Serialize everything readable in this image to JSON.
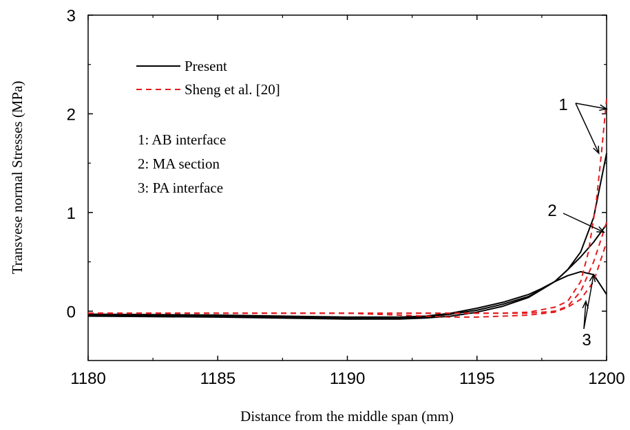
{
  "chart_data": {
    "type": "line",
    "xlabel": "Distance from the middle span (mm)",
    "ylabel": "Transvese normal Stresses (MPa)",
    "xlim": [
      1180,
      1200
    ],
    "ylim": [
      -0.5,
      3
    ],
    "x_ticks": [
      "1180",
      "1185",
      "1190",
      "1195",
      "1200"
    ],
    "y_ticks": [
      "0",
      "1",
      "2",
      "3"
    ],
    "x_tick_values": [
      1180,
      1185,
      1190,
      1195,
      1200
    ],
    "y_tick_values": [
      0,
      1,
      2,
      3
    ],
    "legend": {
      "placement": "top-left",
      "entries": [
        {
          "label": "Present",
          "style": "solid",
          "color": "#000000"
        },
        {
          "label": "Sheng et al. [20]",
          "style": "dashed",
          "color": "#e41a1c"
        }
      ]
    },
    "notes": [
      "1: AB interface",
      "2: MA section",
      "3: PA interface"
    ],
    "annotations": [
      {
        "label": "1",
        "targets": [
          [
            1200,
            2.05
          ],
          [
            1199.7,
            1.6
          ]
        ]
      },
      {
        "label": "2",
        "targets": [
          [
            1199.9,
            0.8
          ]
        ]
      },
      {
        "label": "3",
        "targets": [
          [
            1199.2,
            0.1
          ],
          [
            1199.5,
            0.37
          ]
        ]
      }
    ],
    "series": [
      {
        "group": "Present",
        "x": [
          1180,
          1185,
          1190,
          1192,
          1193,
          1194,
          1195,
          1196,
          1197,
          1198,
          1198.5,
          1199,
          1199.5,
          1200
        ],
        "values": [
          -0.05,
          -0.06,
          -0.08,
          -0.08,
          -0.07,
          -0.05,
          -0.01,
          0.05,
          0.14,
          0.3,
          0.42,
          0.6,
          0.95,
          1.6
        ]
      },
      {
        "group": "Present",
        "x": [
          1180,
          1185,
          1190,
          1192,
          1193,
          1194,
          1195,
          1196,
          1197,
          1197.5,
          1198,
          1198.5,
          1199,
          1199.5,
          1200
        ],
        "values": [
          -0.04,
          -0.05,
          -0.07,
          -0.07,
          -0.06,
          -0.03,
          0.01,
          0.07,
          0.15,
          0.22,
          0.3,
          0.42,
          0.55,
          0.7,
          0.88
        ]
      },
      {
        "group": "Present",
        "x": [
          1180,
          1185,
          1190,
          1192,
          1193,
          1194,
          1195,
          1196,
          1197,
          1197.5,
          1198,
          1198.5,
          1199,
          1199.5,
          1200
        ],
        "values": [
          -0.03,
          -0.04,
          -0.06,
          -0.06,
          -0.05,
          -0.02,
          0.03,
          0.09,
          0.17,
          0.23,
          0.3,
          0.36,
          0.4,
          0.37,
          0.17
        ]
      },
      {
        "group": "Sheng et al. [20]",
        "x": [
          1180,
          1185,
          1190,
          1194,
          1196,
          1197,
          1198,
          1198.5,
          1199,
          1199.3,
          1199.6,
          1199.8,
          1200
        ],
        "values": [
          -0.02,
          -0.02,
          -0.02,
          -0.02,
          -0.02,
          -0.01,
          0.04,
          0.1,
          0.3,
          0.6,
          1.1,
          1.6,
          2.15
        ]
      },
      {
        "group": "Sheng et al. [20]",
        "x": [
          1180,
          1185,
          1190,
          1194,
          1196,
          1197,
          1198,
          1198.5,
          1199,
          1199.5,
          1200
        ],
        "values": [
          -0.02,
          -0.02,
          -0.02,
          -0.02,
          -0.02,
          -0.02,
          0.0,
          0.05,
          0.2,
          0.5,
          0.9
        ]
      },
      {
        "group": "Sheng et al. [20]",
        "x": [
          1180,
          1185,
          1190,
          1194,
          1195,
          1196,
          1197,
          1198,
          1198.5,
          1199,
          1199.5,
          1200
        ],
        "values": [
          -0.02,
          -0.02,
          -0.02,
          -0.06,
          -0.06,
          -0.05,
          -0.04,
          -0.01,
          0.04,
          0.12,
          0.3,
          0.7
        ]
      }
    ]
  }
}
